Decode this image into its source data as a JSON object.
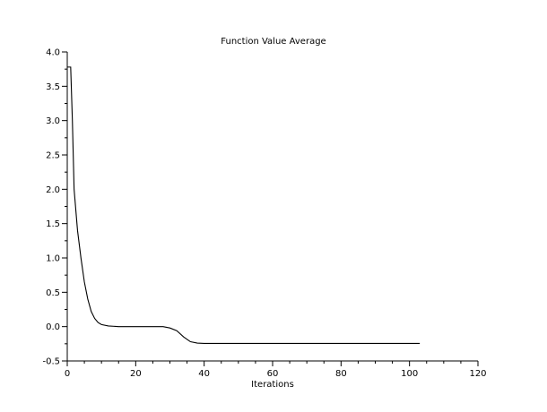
{
  "chart_data": {
    "type": "line",
    "title": "Function Value Average",
    "xlabel": "Iterations",
    "ylabel": "",
    "xlim": [
      0,
      120
    ],
    "ylim": [
      -0.5,
      4.0
    ],
    "xticks": [
      "0",
      "20",
      "40",
      "60",
      "80",
      "100",
      "120"
    ],
    "yticks": [
      "-0.5",
      "0.0",
      "0.5",
      "1.0",
      "1.5",
      "2.0",
      "2.5",
      "3.0",
      "3.5",
      "4.0"
    ],
    "grid": false,
    "series": [
      {
        "color": "#000000",
        "x": [
          0,
          1,
          1.5,
          2,
          3,
          4,
          5,
          6,
          7,
          8,
          9,
          10,
          12,
          15,
          20,
          25,
          28,
          30,
          32,
          34,
          36,
          38,
          40,
          50,
          60,
          70,
          80,
          90,
          100,
          103
        ],
        "y": [
          3.78,
          3.78,
          3.0,
          2.0,
          1.4,
          1.0,
          0.65,
          0.4,
          0.22,
          0.12,
          0.06,
          0.03,
          0.01,
          0.0,
          0.0,
          0.0,
          0.0,
          -0.02,
          -0.06,
          -0.15,
          -0.22,
          -0.24,
          -0.245,
          -0.245,
          -0.245,
          -0.245,
          -0.245,
          -0.245,
          -0.245,
          -0.245
        ]
      }
    ]
  }
}
